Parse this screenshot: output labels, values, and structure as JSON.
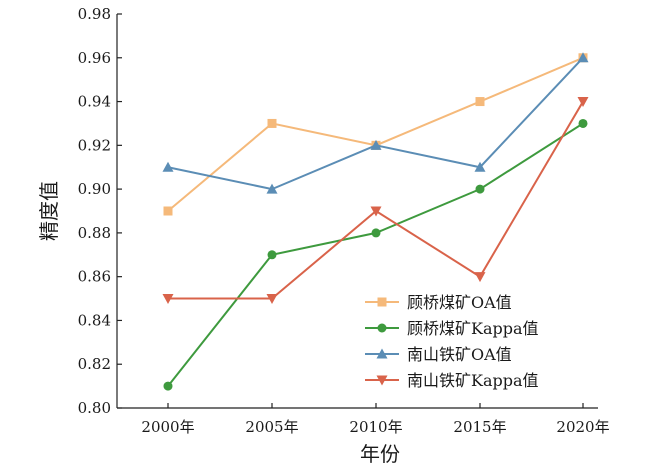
{
  "chart_data": {
    "type": "line",
    "categories": [
      "2000年",
      "2005年",
      "2010年",
      "2015年",
      "2020年"
    ],
    "series": [
      {
        "name": "顾桥煤矿OA值",
        "values": [
          0.89,
          0.93,
          0.92,
          0.94,
          0.96
        ],
        "color": "#f5b97a",
        "marker": "square"
      },
      {
        "name": "顾桥煤矿Kappa值",
        "values": [
          0.81,
          0.87,
          0.88,
          0.9,
          0.93
        ],
        "color": "#3e9a3e",
        "marker": "circle"
      },
      {
        "name": "南山铁矿OA值",
        "values": [
          0.91,
          0.9,
          0.92,
          0.91,
          0.96
        ],
        "color": "#5b8db5",
        "marker": "triangle-up"
      },
      {
        "name": "南山铁矿Kappa值",
        "values": [
          0.85,
          0.85,
          0.89,
          0.86,
          0.94
        ],
        "color": "#d9634a",
        "marker": "triangle-down"
      }
    ],
    "xlabel": "年份",
    "ylabel": "精度值",
    "ylim": [
      0.8,
      0.98
    ],
    "yticks": [
      "0.80",
      "0.82",
      "0.84",
      "0.86",
      "0.88",
      "0.90",
      "0.92",
      "0.94",
      "0.96",
      "0.98"
    ],
    "grid": false,
    "legend_position": "bottom-right"
  }
}
